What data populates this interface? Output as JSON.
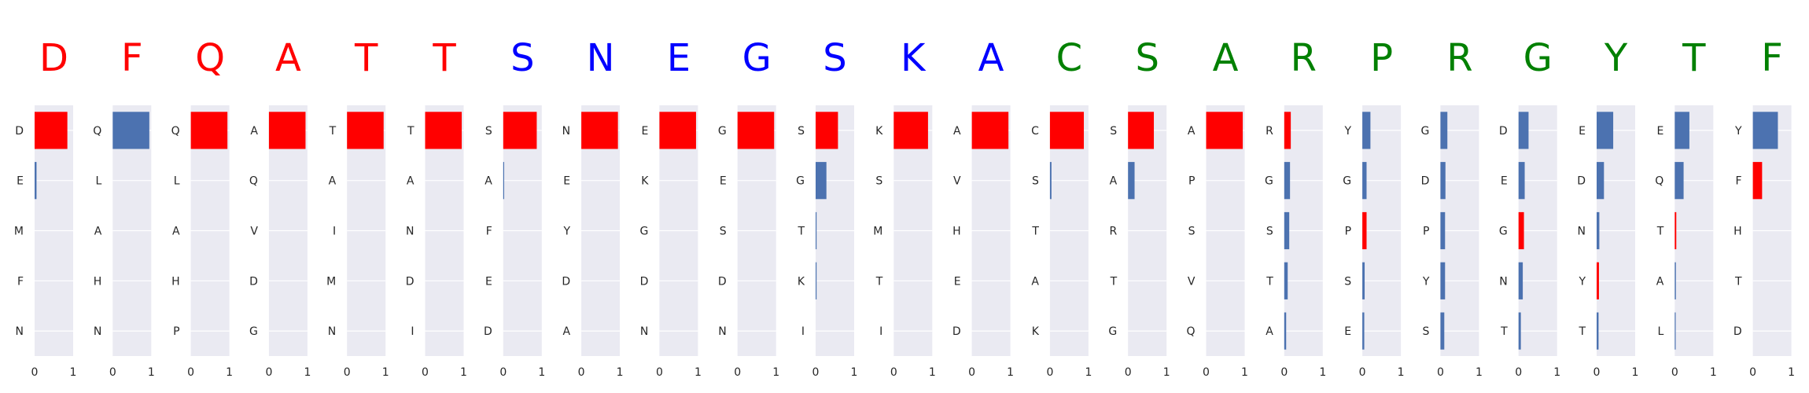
{
  "colors": {
    "red": "#ff0000",
    "blue": "#0000ff",
    "green": "#008000",
    "bar_default": "#4c72b0",
    "bar_highlight": "#ff0000",
    "panel_bg": "#eaeaf2",
    "gridline": "#ffffff",
    "text": "#262626"
  },
  "chart_data": {
    "type": "bar",
    "orientation": "horizontal",
    "xlim": [
      0,
      1
    ],
    "xticks": [
      "0",
      "1"
    ],
    "grid": true,
    "panels": [
      {
        "residue": "D",
        "color": "red",
        "labels": [
          "D",
          "E",
          "M",
          "F",
          "N"
        ],
        "values": [
          0.85,
          0.05,
          0.0,
          0.0,
          0.0
        ],
        "highlight": 0
      },
      {
        "residue": "F",
        "color": "red",
        "labels": [
          "Q",
          "L",
          "A",
          "H",
          "N"
        ],
        "values": [
          0.95,
          0.0,
          0.0,
          0.0,
          0.0
        ],
        "highlight": -1
      },
      {
        "residue": "Q",
        "color": "red",
        "labels": [
          "Q",
          "L",
          "A",
          "H",
          "P"
        ],
        "values": [
          0.95,
          0.0,
          0.0,
          0.0,
          0.0
        ],
        "highlight": 0
      },
      {
        "residue": "A",
        "color": "red",
        "labels": [
          "A",
          "Q",
          "V",
          "D",
          "G"
        ],
        "values": [
          0.95,
          0.0,
          0.0,
          0.0,
          0.0
        ],
        "highlight": 0
      },
      {
        "residue": "T",
        "color": "red",
        "labels": [
          "T",
          "A",
          "I",
          "M",
          "N"
        ],
        "values": [
          0.95,
          0.0,
          0.0,
          0.0,
          0.0
        ],
        "highlight": 0
      },
      {
        "residue": "T",
        "color": "red",
        "labels": [
          "T",
          "A",
          "N",
          "D",
          "I"
        ],
        "values": [
          0.95,
          0.0,
          0.0,
          0.0,
          0.0
        ],
        "highlight": 0
      },
      {
        "residue": "S",
        "color": "blue",
        "labels": [
          "S",
          "A",
          "F",
          "E",
          "D"
        ],
        "values": [
          0.87,
          0.02,
          0.0,
          0.0,
          0.0
        ],
        "highlight": 0
      },
      {
        "residue": "N",
        "color": "blue",
        "labels": [
          "N",
          "E",
          "Y",
          "D",
          "A"
        ],
        "values": [
          0.95,
          0.0,
          0.0,
          0.0,
          0.0
        ],
        "highlight": 0
      },
      {
        "residue": "E",
        "color": "blue",
        "labels": [
          "E",
          "K",
          "G",
          "D",
          "N"
        ],
        "values": [
          0.95,
          0.0,
          0.0,
          0.0,
          0.0
        ],
        "highlight": 0
      },
      {
        "residue": "G",
        "color": "blue",
        "labels": [
          "G",
          "E",
          "S",
          "D",
          "N"
        ],
        "values": [
          0.95,
          0.0,
          0.0,
          0.0,
          0.0
        ],
        "highlight": 0
      },
      {
        "residue": "S",
        "color": "blue",
        "labels": [
          "S",
          "G",
          "T",
          "K",
          "I"
        ],
        "values": [
          0.58,
          0.28,
          0.02,
          0.01,
          0.0
        ],
        "highlight": 0
      },
      {
        "residue": "K",
        "color": "blue",
        "labels": [
          "K",
          "S",
          "M",
          "T",
          "I"
        ],
        "values": [
          0.89,
          0.0,
          0.0,
          0.0,
          0.0
        ],
        "highlight": 0
      },
      {
        "residue": "A",
        "color": "blue",
        "labels": [
          "A",
          "V",
          "H",
          "E",
          "D"
        ],
        "values": [
          0.95,
          0.0,
          0.0,
          0.0,
          0.0
        ],
        "highlight": 0
      },
      {
        "residue": "C",
        "color": "green",
        "labels": [
          "C",
          "S",
          "T",
          "A",
          "K"
        ],
        "values": [
          0.88,
          0.04,
          0.0,
          0.0,
          0.0
        ],
        "highlight": 0
      },
      {
        "residue": "S",
        "color": "green",
        "labels": [
          "S",
          "A",
          "R",
          "T",
          "G"
        ],
        "values": [
          0.67,
          0.17,
          0.0,
          0.0,
          0.0
        ],
        "highlight": 0
      },
      {
        "residue": "A",
        "color": "green",
        "labels": [
          "A",
          "P",
          "S",
          "V",
          "Q"
        ],
        "values": [
          0.95,
          0.0,
          0.0,
          0.0,
          0.0
        ],
        "highlight": 0
      },
      {
        "residue": "R",
        "color": "green",
        "labels": [
          "R",
          "G",
          "S",
          "T",
          "A"
        ],
        "values": [
          0.17,
          0.15,
          0.13,
          0.09,
          0.05
        ],
        "highlight": 0
      },
      {
        "residue": "P",
        "color": "green",
        "labels": [
          "Y",
          "G",
          "P",
          "S",
          "E"
        ],
        "values": [
          0.21,
          0.11,
          0.11,
          0.06,
          0.05
        ],
        "highlight": 2
      },
      {
        "residue": "R",
        "color": "green",
        "labels": [
          "G",
          "D",
          "P",
          "Y",
          "S"
        ],
        "values": [
          0.18,
          0.13,
          0.12,
          0.12,
          0.1
        ],
        "highlight": -1
      },
      {
        "residue": "G",
        "color": "green",
        "labels": [
          "D",
          "E",
          "G",
          "N",
          "T"
        ],
        "values": [
          0.26,
          0.16,
          0.14,
          0.11,
          0.06
        ],
        "highlight": 2
      },
      {
        "residue": "Y",
        "color": "green",
        "labels": [
          "E",
          "D",
          "N",
          "Y",
          "T"
        ],
        "values": [
          0.43,
          0.19,
          0.07,
          0.06,
          0.05
        ],
        "highlight": 3
      },
      {
        "residue": "T",
        "color": "green",
        "labels": [
          "E",
          "Q",
          "T",
          "A",
          "L"
        ],
        "values": [
          0.38,
          0.23,
          0.04,
          0.03,
          0.02
        ],
        "highlight": 2
      },
      {
        "residue": "F",
        "color": "green",
        "labels": [
          "Y",
          "F",
          "H",
          "T",
          "D"
        ],
        "values": [
          0.65,
          0.24,
          0.0,
          0.0,
          0.0
        ],
        "highlight": 1
      }
    ]
  }
}
